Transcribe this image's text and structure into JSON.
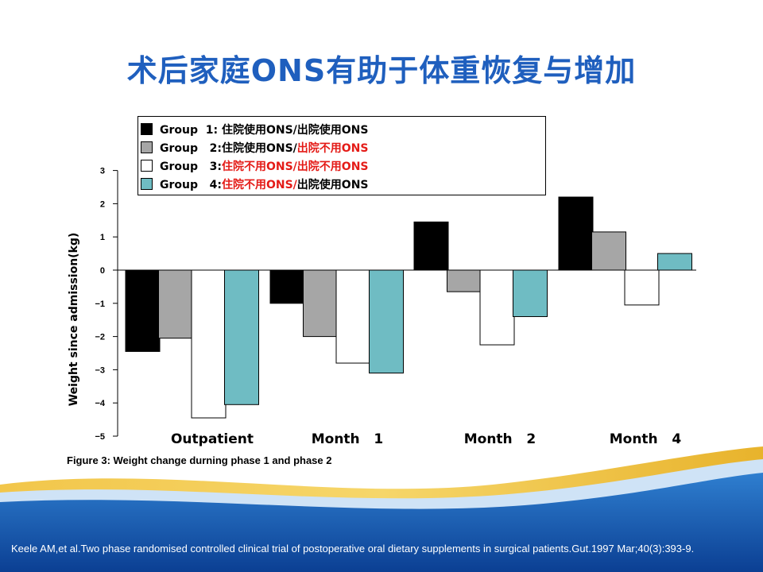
{
  "slide": {
    "title": "术后家庭ONS有助于体重恢复与增加",
    "citation": "Keele AM,et al.Two phase randomised controlled clinical trial of postoperative oral dietary supplements in surgical patients.Gut.1997 Mar;40(3):393-9."
  },
  "legend": [
    {
      "name": "Group  1: 住院使用ONS/出院使用ONS",
      "parts": [
        {
          "t": "Group  1: 住院使用ONS/出院使用ONS",
          "red": false
        }
      ],
      "color": "#000000"
    },
    {
      "name": "Group   2:住院使用ONS/出院不用ONS",
      "parts": [
        {
          "t": "Group   2:住院使用ONS/",
          "red": false
        },
        {
          "t": "出院不用ONS",
          "red": true
        }
      ],
      "color": "#a6a6a6"
    },
    {
      "name": "Group   3:住院不用ONS/出院不用ONS",
      "parts": [
        {
          "t": "Group   3:",
          "red": false
        },
        {
          "t": "住院不用ONS/",
          "red": true
        },
        {
          "t": "出院不用ONS",
          "red": true
        }
      ],
      "color": "#ffffff"
    },
    {
      "name": "Group   4:住院不用ONS/出院使用ONS",
      "parts": [
        {
          "t": "Group   4:",
          "red": false
        },
        {
          "t": "住院不用ONS/",
          "red": true
        },
        {
          "t": "出院使用ONS",
          "red": false
        }
      ],
      "color": "#6fbcc3"
    }
  ],
  "chart_data": {
    "type": "bar",
    "caption": "Figure 3: Weight change durning phase 1 and phase 2",
    "ylabel": "Weight since admission(kg)",
    "ylim": [
      -5,
      3
    ],
    "yticks": [
      "3",
      "2",
      "1",
      "0",
      "−1",
      "−2",
      "−3",
      "−4",
      "−5"
    ],
    "categories": [
      "Outpatient",
      "Month   1",
      "Month   2",
      "Month   4"
    ],
    "series": [
      {
        "name": "Group  1: 住院使用ONS/出院使用ONS",
        "color": "#000000",
        "values": [
          -2.45,
          -1.0,
          1.45,
          2.2
        ]
      },
      {
        "name": "Group   2:住院使用ONS/出院不用ONS",
        "color": "#a6a6a6",
        "values": [
          -2.05,
          -2.0,
          -0.65,
          1.15
        ]
      },
      {
        "name": "Group   3:住院不用ONS/出院不用ONS",
        "color": "#ffffff",
        "values": [
          -4.45,
          -2.8,
          -2.25,
          -1.05
        ]
      },
      {
        "name": "Group   4:住院不用ONS/出院使用ONS",
        "color": "#6fbcc3",
        "values": [
          -4.05,
          -3.1,
          -1.4,
          0.5
        ]
      }
    ],
    "grid": false,
    "legend_position": "top"
  }
}
